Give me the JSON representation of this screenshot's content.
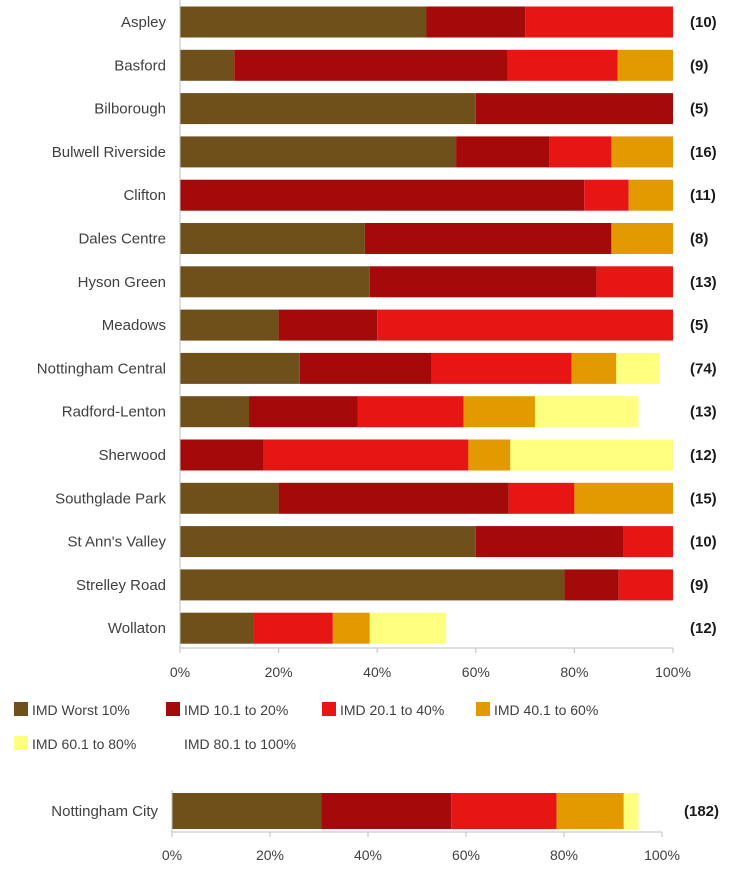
{
  "chart_data": [
    {
      "type": "bar",
      "orientation": "horizontal",
      "stacked": true,
      "categories": [
        "Aspley",
        "Basford",
        "Bilborough",
        "Bulwell Riverside",
        "Clifton",
        "Dales Centre",
        "Hyson Green",
        "Meadows",
        "Nottingham Central",
        "Radford-Lenton",
        "Sherwood",
        "Southglade Park",
        "St Ann's Valley",
        "Strelley Road",
        "Wollaton"
      ],
      "counts": [
        "(10)",
        "(9)",
        "(5)",
        "(16)",
        "(11)",
        "(8)",
        "(13)",
        "(5)",
        "(74)",
        "(13)",
        "(12)",
        "(15)",
        "(10)",
        "(9)",
        "(12)"
      ],
      "series": [
        {
          "name": "IMD Worst 10%",
          "color": "#70501a",
          "values": [
            50,
            11,
            60,
            56,
            0,
            37.5,
            38.5,
            20,
            24.3,
            14,
            0,
            20,
            60,
            78,
            15
          ]
        },
        {
          "name": "IMD 10.1 to 20%",
          "color": "#a50a0a",
          "values": [
            20,
            55.5,
            40,
            19,
            82,
            50,
            46,
            20,
            26.7,
            22,
            17,
            46.7,
            30,
            11,
            0
          ]
        },
        {
          "name": "IMD 20.1 to 40%",
          "color": "#e81515",
          "values": [
            30,
            22.3,
            0,
            12.5,
            9,
            0,
            15.5,
            60,
            28.4,
            21.5,
            41.5,
            13.3,
            10,
            11,
            16
          ]
        },
        {
          "name": "IMD 40.1 to 60%",
          "color": "#e39a00",
          "values": [
            0,
            11.2,
            0,
            12.5,
            9,
            12.5,
            0,
            0,
            9.1,
            14.5,
            8.5,
            20,
            0,
            0,
            7.5
          ]
        },
        {
          "name": "IMD 60.1 to 80%",
          "color": "#ffff7f",
          "values": [
            0,
            0,
            0,
            0,
            0,
            0,
            0,
            0,
            8.8,
            21,
            33,
            0,
            0,
            0,
            15.5
          ]
        },
        {
          "name": "IMD 80.1 to 100%",
          "color": "#ffffff",
          "values": [
            0,
            0,
            0,
            0,
            0,
            0,
            0,
            0,
            0,
            0,
            0,
            0,
            0,
            0,
            0
          ]
        }
      ],
      "xlim": [
        0,
        100
      ],
      "xticks": [
        "0%",
        "20%",
        "40%",
        "60%",
        "80%",
        "100%"
      ],
      "legend_position": "bottom"
    },
    {
      "type": "bar",
      "orientation": "horizontal",
      "stacked": true,
      "categories": [
        "Nottingham City"
      ],
      "counts": [
        "(182)"
      ],
      "series": [
        {
          "name": "IMD Worst 10%",
          "color": "#70501a",
          "values": [
            30.5
          ]
        },
        {
          "name": "IMD 10.1 to 20%",
          "color": "#a50a0a",
          "values": [
            26.5
          ]
        },
        {
          "name": "IMD 20.1 to 40%",
          "color": "#e81515",
          "values": [
            21.5
          ]
        },
        {
          "name": "IMD 40.1 to 60%",
          "color": "#e39a00",
          "values": [
            13.7
          ]
        },
        {
          "name": "IMD 60.1 to 80%",
          "color": "#ffff7f",
          "values": [
            3
          ]
        },
        {
          "name": "IMD 80.1 to 100%",
          "color": "#ffffff",
          "values": [
            0
          ]
        }
      ],
      "xlim": [
        0,
        100
      ],
      "xticks": [
        "0%",
        "20%",
        "40%",
        "60%",
        "80%",
        "100%"
      ]
    }
  ]
}
